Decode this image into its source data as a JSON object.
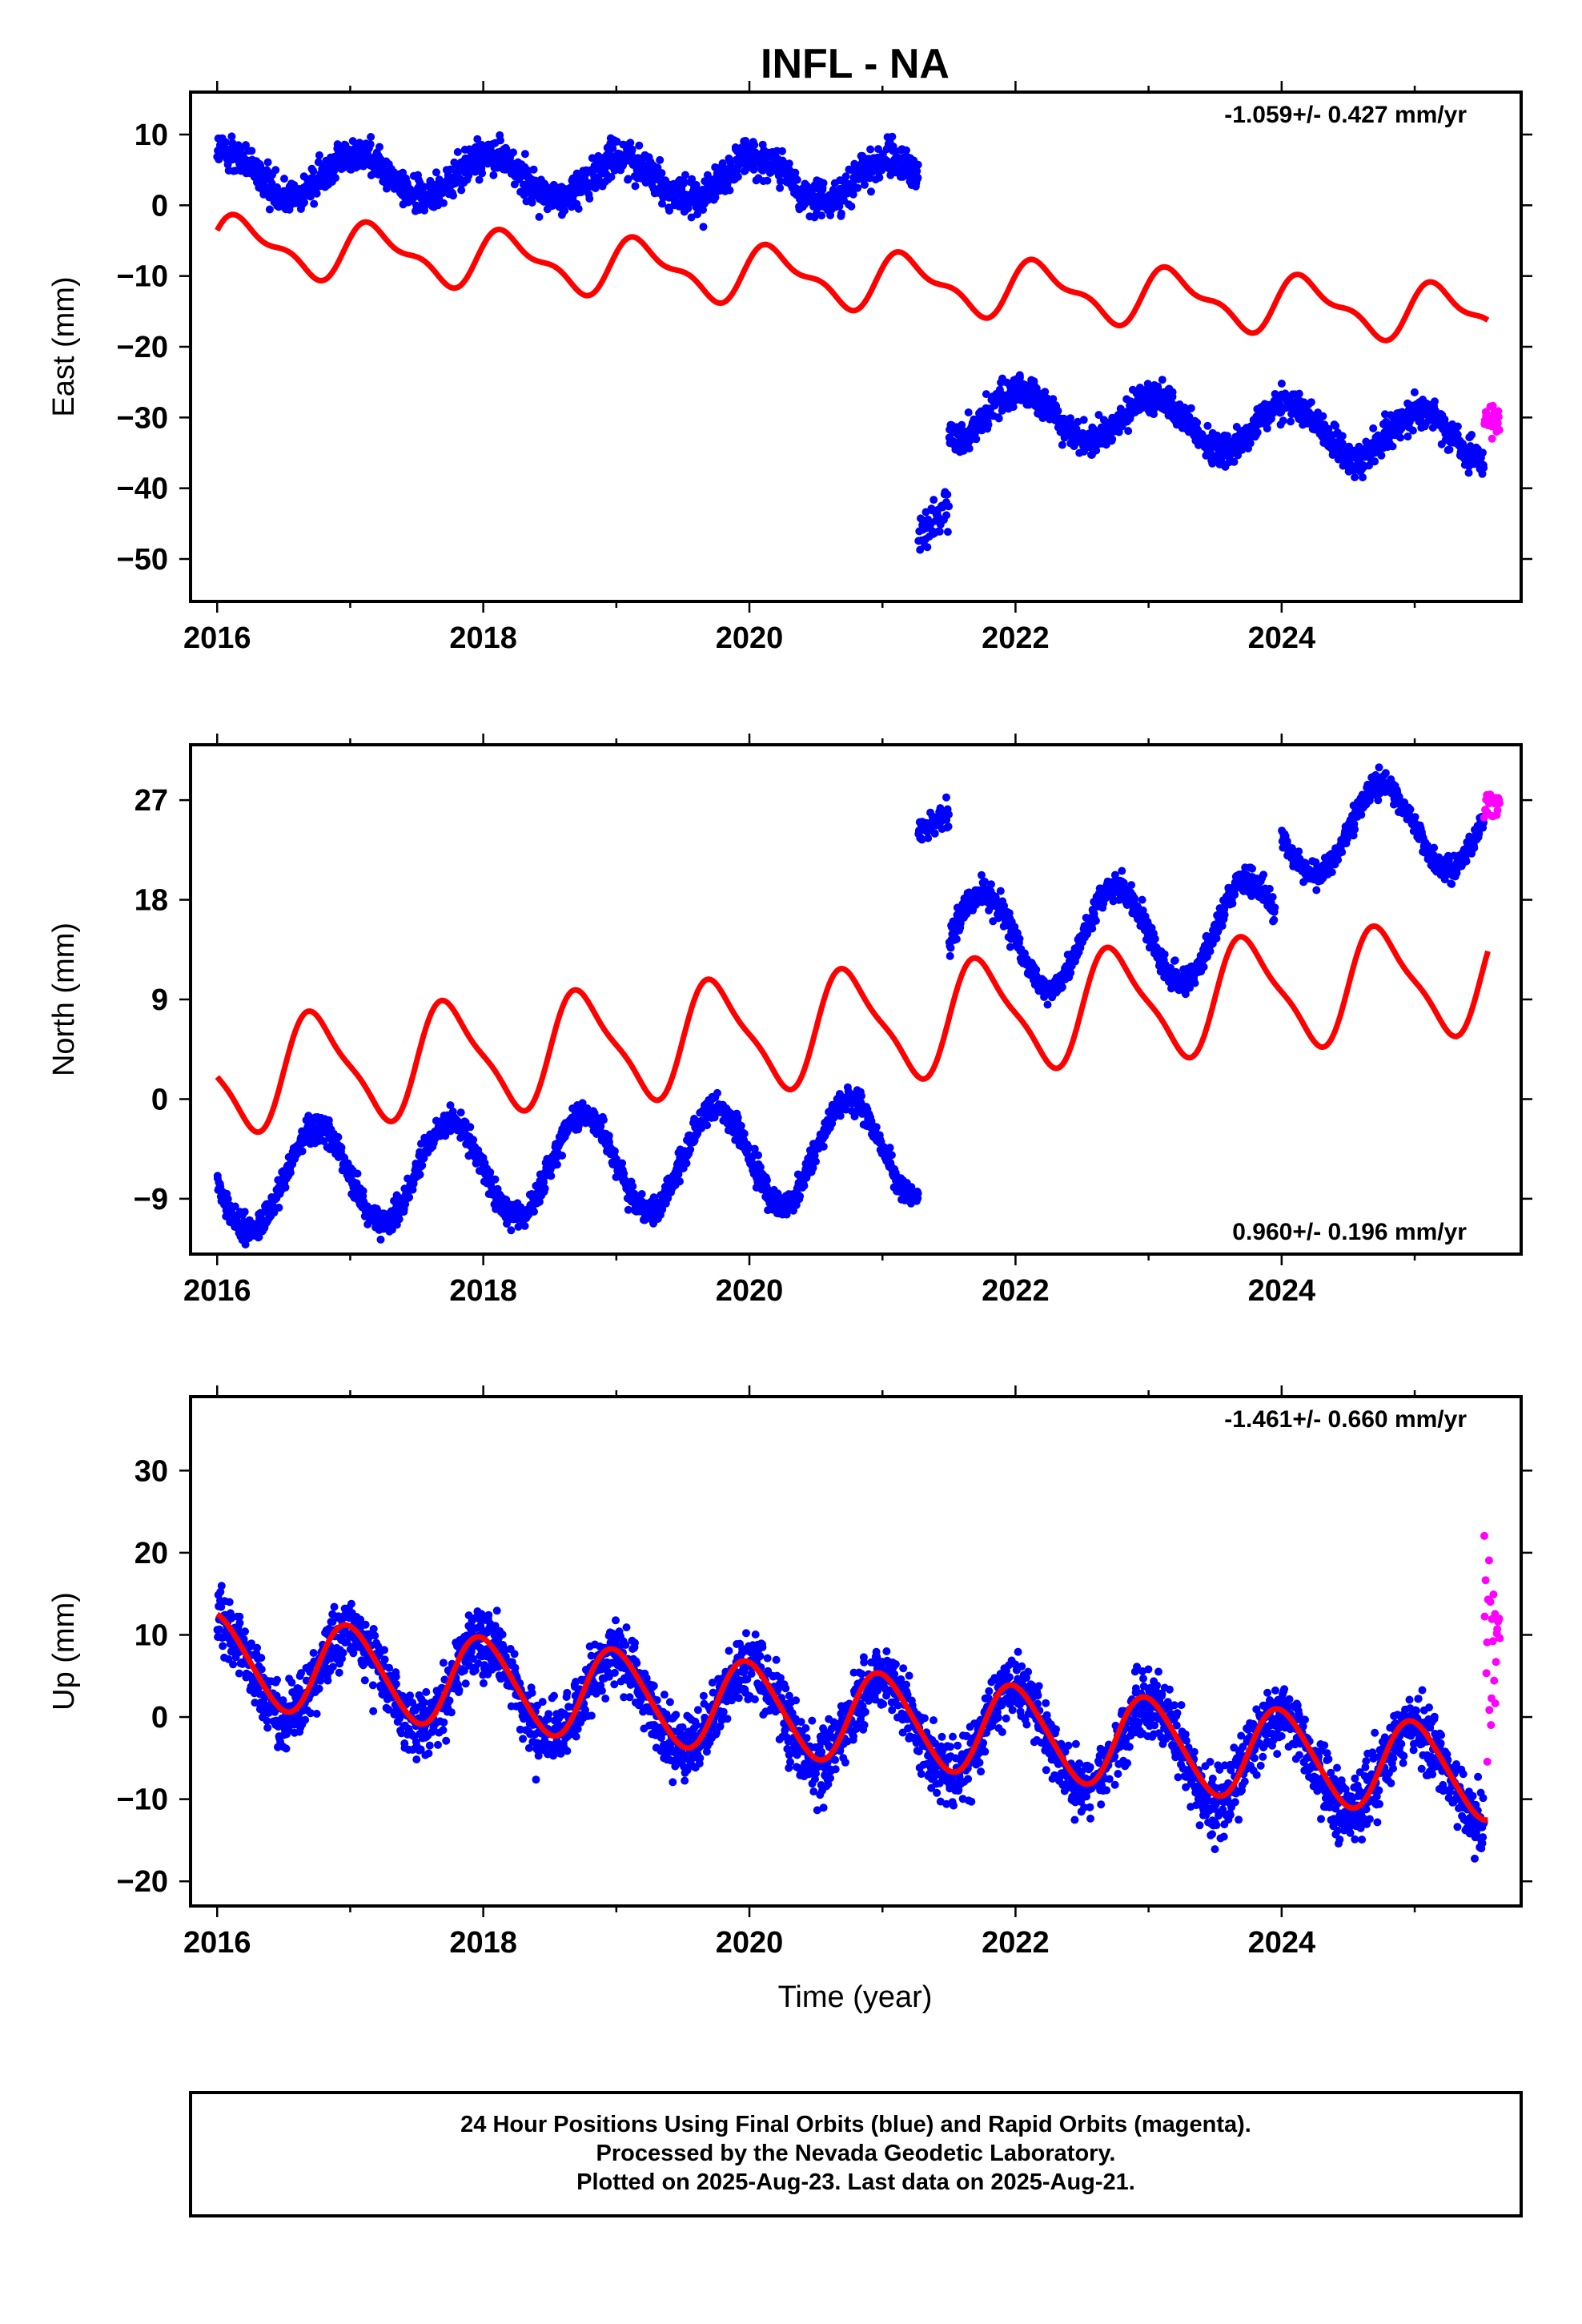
{
  "title": "INFL - NA",
  "xlabel": "Time (year)",
  "caption": [
    "24 Hour Positions Using Final Orbits (blue) and Rapid Orbits (magenta).",
    "Processed by the Nevada Geodetic Laboratory.",
    "Plotted on 2025-Aug-23. Last data on 2025-Aug-21."
  ],
  "colors": {
    "final": "#0000ff",
    "rapid": "#ff00ff",
    "model": "#ff0000"
  },
  "chart_data": [
    {
      "type": "scatter",
      "component": "East",
      "ylabel": "East (mm)",
      "rate_text": "-1.059+/- 0.427 mm/yr",
      "xlim": [
        2015.8,
        2025.8
      ],
      "ylim": [
        -56,
        16
      ],
      "xticks": [
        2016,
        2018,
        2020,
        2022,
        2024
      ],
      "yticks": [
        10,
        0,
        -10,
        -20,
        -30,
        -40,
        -50
      ],
      "yticklabels": [
        "10",
        "0",
        "−10",
        "−20",
        "−30",
        "−40",
        "−50"
      ],
      "series": [
        {
          "segment": "before 2021.3 offset",
          "start": 2016.0,
          "end": 2021.27,
          "offset": 4.5,
          "slope": -0.2,
          "annual": 3.0,
          "phase": 0.8,
          "noise": 2.5,
          "color": "final",
          "points_per_year": 300
        },
        {
          "segment": "step after offset",
          "start": 2021.27,
          "end": 2021.5,
          "offset": -47,
          "slope": 20,
          "annual": 0,
          "phase": 0,
          "noise": 3,
          "color": "final",
          "points_per_year": 200
        },
        {
          "segment": "after offset",
          "start": 2021.5,
          "end": 2025.52,
          "offset": -29,
          "slope": -1.0,
          "annual": 3.5,
          "phase": 0.8,
          "noise": 2.2,
          "color": "final",
          "points_per_year": 300
        },
        {
          "segment": "rapid",
          "start": 2025.52,
          "end": 2025.64,
          "offset": -31,
          "slope": 0,
          "annual": 0,
          "phase": 0,
          "noise": 2.5,
          "color": "rapid",
          "points_per_year": 200
        }
      ],
      "model": {
        "start": 2016.0,
        "end": 2025.55,
        "offset": -5.5,
        "slope": -1.059,
        "annual": 3.5,
        "semiannual": 1.5,
        "phase": 0.95
      }
    },
    {
      "type": "scatter",
      "component": "North",
      "ylabel": "North (mm)",
      "rate_text": "0.960+/- 0.196 mm/yr",
      "xlim": [
        2015.8,
        2025.8
      ],
      "ylim": [
        -14,
        32
      ],
      "xticks": [
        2016,
        2018,
        2020,
        2022,
        2024
      ],
      "yticks": [
        27,
        18,
        9,
        0,
        -9
      ],
      "yticklabels": [
        "27",
        "18",
        "9",
        "0",
        "−9"
      ],
      "series": [
        {
          "segment": "before offset",
          "start": 2016.0,
          "end": 2021.27,
          "offset": -7.5,
          "slope": 0.6,
          "annual": 4.5,
          "phase": 0.5,
          "noise": 1.2,
          "color": "final",
          "points_per_year": 300
        },
        {
          "segment": "jump",
          "start": 2021.27,
          "end": 2021.5,
          "offset": 24,
          "slope": 8,
          "annual": 0,
          "phase": 0,
          "noise": 1.2,
          "color": "final",
          "points_per_year": 250
        },
        {
          "segment": "middle",
          "start": 2021.5,
          "end": 2023.95,
          "offset": 14,
          "slope": 0.6,
          "annual": 4.5,
          "phase": 0.5,
          "noise": 1.2,
          "color": "final",
          "points_per_year": 300
        },
        {
          "segment": "late",
          "start": 2024.0,
          "end": 2025.52,
          "offset": 24,
          "slope": 0.6,
          "annual": 4.0,
          "phase": 0.5,
          "noise": 1.0,
          "color": "final",
          "points_per_year": 300
        },
        {
          "segment": "rapid",
          "start": 2025.52,
          "end": 2025.64,
          "offset": 26.5,
          "slope": 0,
          "annual": 0,
          "phase": 0,
          "noise": 1.5,
          "color": "rapid",
          "points_per_year": 200
        }
      ],
      "model": {
        "start": 2016.0,
        "end": 2025.55,
        "offset": 2.0,
        "slope": 0.96,
        "annual": 4.8,
        "semiannual": 1.2,
        "phase": 0.5
      }
    },
    {
      "type": "scatter",
      "component": "Up",
      "ylabel": "Up (mm)",
      "rate_text": "-1.461+/- 0.660 mm/yr",
      "xlim": [
        2015.8,
        2025.8
      ],
      "ylim": [
        -23,
        39
      ],
      "xticks": [
        2016,
        2018,
        2020,
        2022,
        2024
      ],
      "yticks": [
        30,
        20,
        10,
        0,
        -10,
        -20
      ],
      "yticklabels": [
        "30",
        "20",
        "10",
        "0",
        "−10",
        "−20"
      ],
      "series": [
        {
          "segment": "final",
          "start": 2016.0,
          "end": 2025.52,
          "offset": 6.5,
          "slope": -1.461,
          "annual": 5.5,
          "phase": 0.75,
          "noise": 4.0,
          "color": "final",
          "points_per_year": 330
        },
        {
          "segment": "rapid",
          "start": 2025.52,
          "end": 2025.64,
          "offset": 8,
          "slope": 0,
          "annual": 0,
          "phase": 0,
          "noise": 12,
          "color": "rapid",
          "points_per_year": 200
        }
      ],
      "model": {
        "start": 2016.0,
        "end": 2025.55,
        "offset": 7.0,
        "slope": -1.461,
        "annual": 5.5,
        "semiannual": 0.6,
        "phase": 0.75
      }
    }
  ]
}
